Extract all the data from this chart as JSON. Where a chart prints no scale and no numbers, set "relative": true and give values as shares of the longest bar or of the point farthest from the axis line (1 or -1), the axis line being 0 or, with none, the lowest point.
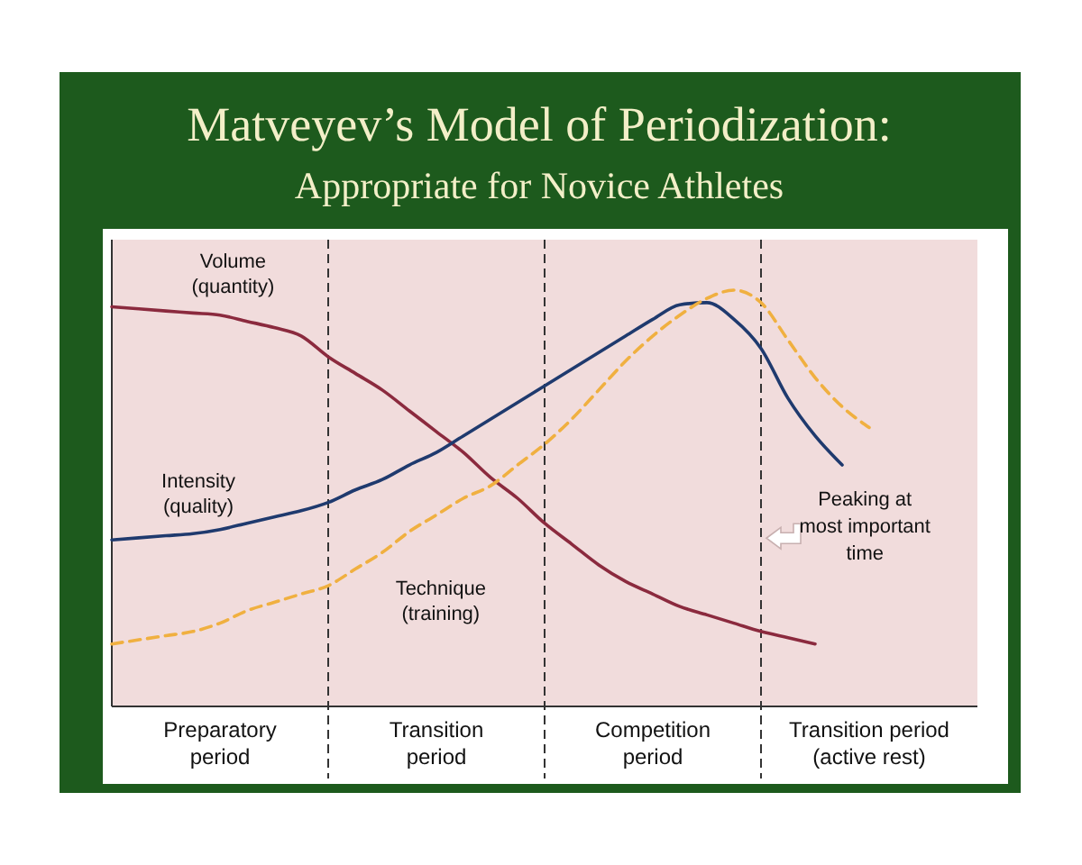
{
  "chart_data": {
    "type": "line",
    "title": "Matveyev’s Model of Periodization:",
    "subtitle": "Appropriate for Novice Athletes",
    "relative": true,
    "tick_labels": "x",
    "grid": "x",
    "categories": [
      null,
      null,
      null,
      null,
      "Preparatory period",
      null,
      null,
      null,
      null,
      null,
      null,
      null,
      "Transition period",
      null,
      null,
      null,
      null,
      null,
      null,
      null,
      "Competition period",
      null,
      null,
      null,
      null,
      null,
      null,
      null,
      "Transition period (active rest)",
      null,
      null,
      null,
      null
    ],
    "series": [
      {
        "name": "Volume (quantity)",
        "color": "#8b2a3e",
        "line_style": "solid",
        "values": [
          0.96,
          0.955,
          0.95,
          0.945,
          0.94,
          0.925,
          0.91,
          0.89,
          0.84,
          0.8,
          0.76,
          0.71,
          0.66,
          0.61,
          0.55,
          0.5,
          0.44,
          0.39,
          0.34,
          0.3,
          0.27,
          0.24,
          0.22,
          0.2,
          0.18,
          0.165,
          0.15,
          null,
          null,
          null,
          null,
          null,
          null
        ]
      },
      {
        "name": "Intensity (quality)",
        "color": "#1f3a6e",
        "line_style": "solid",
        "values": [
          0.4,
          0.405,
          0.41,
          0.415,
          0.425,
          0.44,
          0.455,
          0.47,
          0.49,
          0.52,
          0.545,
          0.58,
          0.61,
          0.65,
          0.69,
          0.73,
          0.77,
          0.81,
          0.85,
          0.89,
          0.93,
          0.965,
          0.97,
          0.93,
          0.86,
          0.74,
          0.65,
          0.58,
          null,
          null,
          null,
          null,
          null
        ]
      },
      {
        "name": "Technique (training)",
        "color": "#f0b040",
        "line_style": "dashed",
        "values": [
          0.15,
          0.16,
          0.17,
          0.18,
          0.2,
          0.23,
          0.25,
          0.27,
          0.29,
          0.33,
          0.37,
          0.42,
          0.46,
          0.5,
          0.53,
          0.58,
          0.63,
          0.69,
          0.76,
          0.83,
          0.89,
          0.94,
          0.98,
          1,
          0.97,
          0.88,
          0.79,
          0.72,
          0.67,
          null,
          null,
          null,
          null
        ]
      }
    ],
    "annotations": [
      "Peaking at most important time"
    ]
  }
}
